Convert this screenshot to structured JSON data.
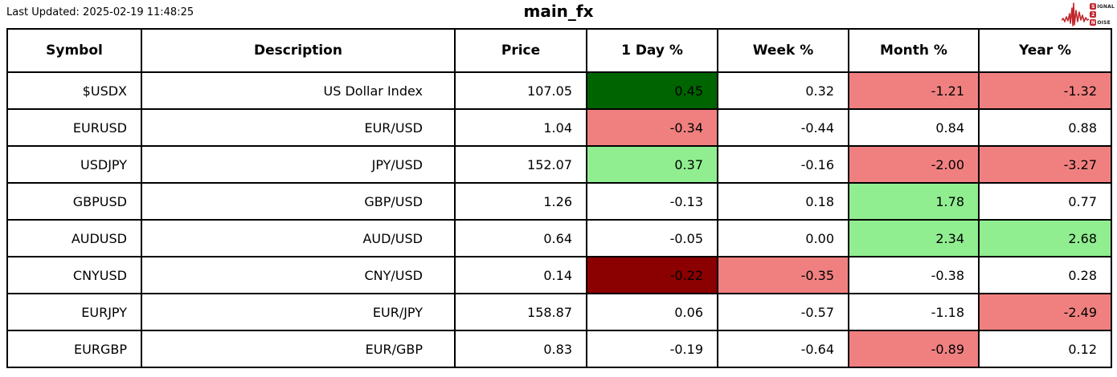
{
  "colors": {
    "strong_up": "#006400",
    "up": "#90ee90",
    "down": "#f08080",
    "strong_down": "#8b0000",
    "border": "#000000",
    "logo_red": "#c0272d"
  },
  "header": {
    "logo_lines": [
      "SIGNAL",
      "2",
      "NOISE"
    ]
  },
  "chart_data": {
    "type": "table",
    "title": "main_fx",
    "last_updated": "Last Updated: 2025-02-19 11:48:25",
    "columns": [
      {
        "key": "symbol",
        "label": "Symbol"
      },
      {
        "key": "description",
        "label": "Description"
      },
      {
        "key": "price",
        "label": "Price"
      },
      {
        "key": "day",
        "label": "1 Day %"
      },
      {
        "key": "week",
        "label": "Week %"
      },
      {
        "key": "month",
        "label": "Month %"
      },
      {
        "key": "year",
        "label": "Year %"
      }
    ],
    "rows": [
      {
        "symbol": "$USDX",
        "description": "US Dollar Index",
        "price": 107.05,
        "changes": {
          "day": 0.45,
          "week": 0.32,
          "month": -1.21,
          "year": -1.32
        },
        "tones": {
          "day": "strong_up",
          "week": null,
          "month": "down",
          "year": "down"
        }
      },
      {
        "symbol": "EURUSD",
        "description": "EUR/USD",
        "price": 1.04,
        "changes": {
          "day": -0.34,
          "week": -0.44,
          "month": 0.84,
          "year": 0.88
        },
        "tones": {
          "day": "down",
          "week": null,
          "month": null,
          "year": null
        }
      },
      {
        "symbol": "USDJPY",
        "description": "JPY/USD",
        "price": 152.07,
        "changes": {
          "day": 0.37,
          "week": -0.16,
          "month": -2.0,
          "year": -3.27
        },
        "tones": {
          "day": "up",
          "week": null,
          "month": "down",
          "year": "down"
        }
      },
      {
        "symbol": "GBPUSD",
        "description": "GBP/USD",
        "price": 1.26,
        "changes": {
          "day": -0.13,
          "week": 0.18,
          "month": 1.78,
          "year": 0.77
        },
        "tones": {
          "day": null,
          "week": null,
          "month": "up",
          "year": null
        }
      },
      {
        "symbol": "AUDUSD",
        "description": "AUD/USD",
        "price": 0.64,
        "changes": {
          "day": -0.05,
          "week": 0.0,
          "month": 2.34,
          "year": 2.68
        },
        "tones": {
          "day": null,
          "week": null,
          "month": "up",
          "year": "up"
        }
      },
      {
        "symbol": "CNYUSD",
        "description": "CNY/USD",
        "price": 0.14,
        "changes": {
          "day": -0.22,
          "week": -0.35,
          "month": -0.38,
          "year": 0.28
        },
        "tones": {
          "day": "strong_down",
          "week": "down",
          "month": null,
          "year": null
        }
      },
      {
        "symbol": "EURJPY",
        "description": "EUR/JPY",
        "price": 158.87,
        "changes": {
          "day": 0.06,
          "week": -0.57,
          "month": -1.18,
          "year": -2.49
        },
        "tones": {
          "day": null,
          "week": null,
          "month": null,
          "year": "down"
        }
      },
      {
        "symbol": "EURGBP",
        "description": "EUR/GBP",
        "price": 0.83,
        "changes": {
          "day": -0.19,
          "week": -0.64,
          "month": -0.89,
          "year": 0.12
        },
        "tones": {
          "day": null,
          "week": null,
          "month": "down",
          "year": null
        }
      }
    ]
  }
}
